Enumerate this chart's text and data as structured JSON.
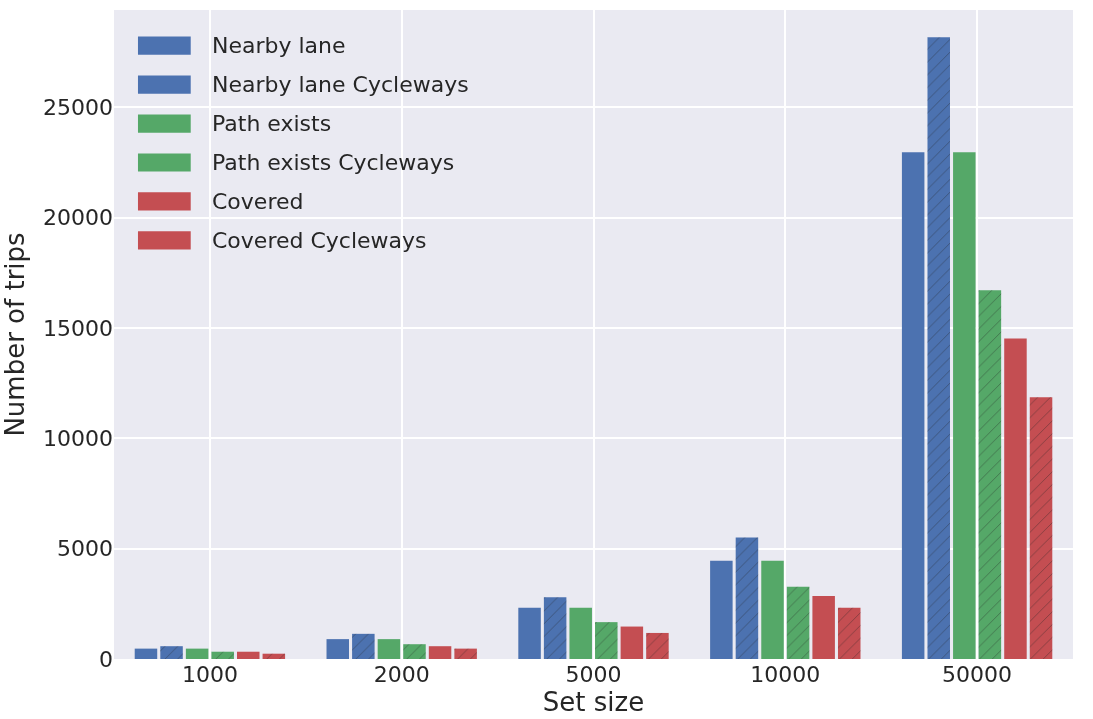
{
  "chart_data": {
    "type": "bar",
    "xlabel": "Set size",
    "ylabel": "Number of trips",
    "categories": [
      "1000",
      "2000",
      "5000",
      "10000",
      "50000"
    ],
    "series": [
      {
        "name": "Nearby lane",
        "color": "#4c72b0",
        "values": [
          470,
          900,
          2320,
          4450,
          22960
        ]
      },
      {
        "name": "Nearby lane Cycleways",
        "color": "#4c72b0",
        "values": [
          580,
          1140,
          2800,
          5500,
          28170
        ]
      },
      {
        "name": "Path exists",
        "color": "#55a868",
        "values": [
          470,
          900,
          2320,
          4450,
          22960
        ]
      },
      {
        "name": "Path exists Cycleways",
        "color": "#55a868",
        "values": [
          330,
          670,
          1670,
          3270,
          16710
        ]
      },
      {
        "name": "Covered",
        "color": "#c44e52",
        "values": [
          330,
          580,
          1470,
          2850,
          14520
        ]
      },
      {
        "name": "Covered Cycleways",
        "color": "#c44e52",
        "values": [
          240,
          470,
          1180,
          2320,
          11860
        ]
      }
    ],
    "ylim": [
      0,
      29400
    ],
    "yticks": [
      0,
      5000,
      10000,
      15000,
      20000,
      25000
    ],
    "grid": true,
    "legend": "top left"
  }
}
